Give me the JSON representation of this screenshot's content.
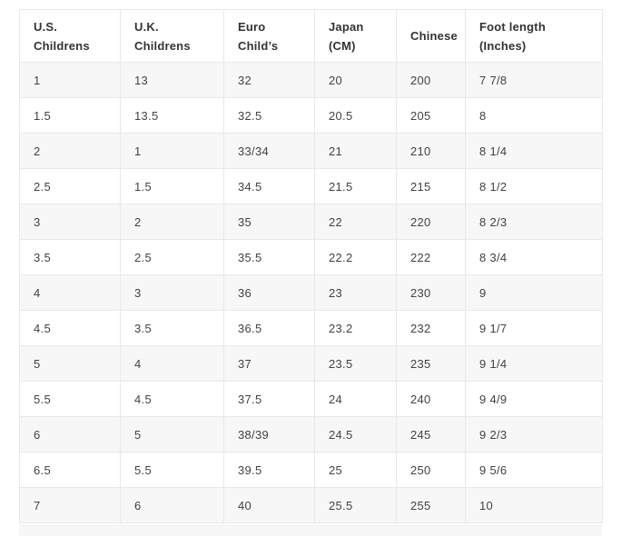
{
  "colors": {
    "border": "#e8e8e8",
    "row_stripe": "#f7f7f7",
    "header_text": "#333333",
    "body_text": "#424242",
    "page_background": "#ffffff"
  },
  "table": {
    "columns": [
      "U.S. Childrens",
      "U.K. Childrens",
      "Euro Child’s",
      "Japan (CM)",
      "Chinese",
      "Foot length (Inches)"
    ],
    "rows": [
      [
        "1",
        "13",
        "32",
        "20",
        "200",
        "7 7/8"
      ],
      [
        "1.5",
        "13.5",
        "32.5",
        "20.5",
        "205",
        "8"
      ],
      [
        "2",
        "1",
        "33/34",
        "21",
        "210",
        "8 1/4"
      ],
      [
        "2.5",
        "1.5",
        "34.5",
        "21.5",
        "215",
        "8 1/2"
      ],
      [
        "3",
        "2",
        "35",
        "22",
        "220",
        "8 2/3"
      ],
      [
        "3.5",
        "2.5",
        "35.5",
        "22.2",
        "222",
        "8 3/4"
      ],
      [
        "4",
        "3",
        "36",
        "23",
        "230",
        "9"
      ],
      [
        "4.5",
        "3.5",
        "36.5",
        "23.2",
        "232",
        "9 1/7"
      ],
      [
        "5",
        "4",
        "37",
        "23.5",
        "235",
        "9 1/4"
      ],
      [
        "5.5",
        "4.5",
        "37.5",
        "24",
        "240",
        "9 4/9"
      ],
      [
        "6",
        "5",
        "38/39",
        "24.5",
        "245",
        "9 2/3"
      ],
      [
        "6.5",
        "5.5",
        "39.5",
        "25",
        "250",
        "9 5/6"
      ],
      [
        "7",
        "6",
        "40",
        "25.5",
        "255",
        "10"
      ]
    ]
  }
}
